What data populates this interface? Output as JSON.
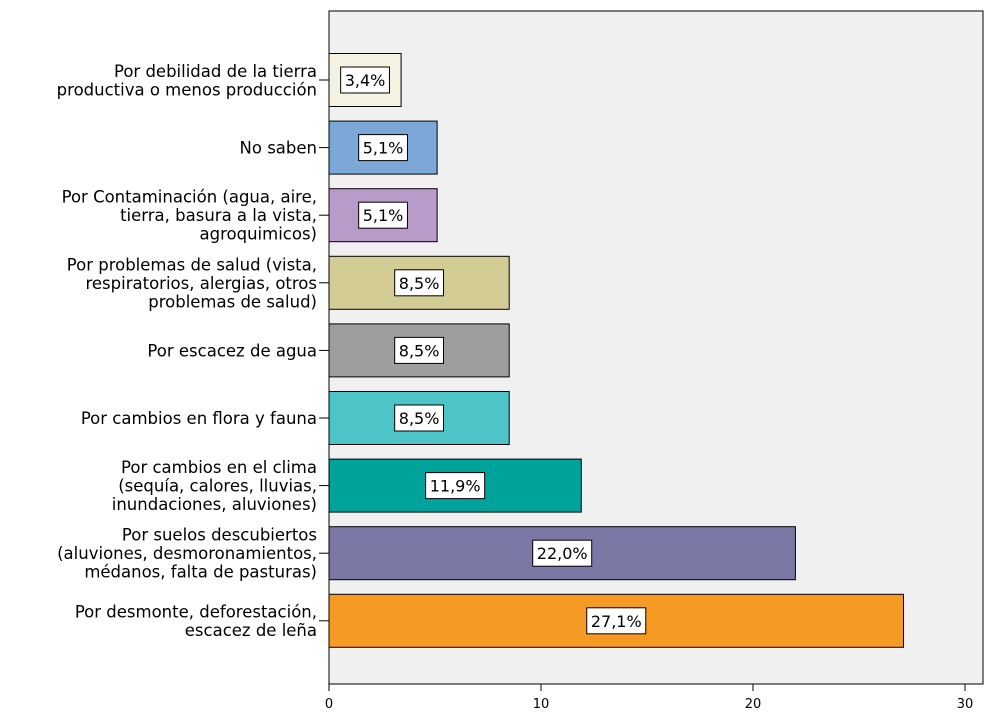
{
  "chart_data": {
    "type": "bar",
    "orientation": "horizontal",
    "categories": [
      [
        "Por debilidad de la tierra",
        "productiva o menos producción"
      ],
      [
        "No saben"
      ],
      [
        "Por Contaminación (agua, aire,",
        "tierra, basura a la vista,",
        "agroquimicos)"
      ],
      [
        "Por problemas de salud (vista,",
        "respiratorios, alergias, otros",
        "problemas de salud)"
      ],
      [
        "Por escacez de agua"
      ],
      [
        "Por cambios en flora y fauna"
      ],
      [
        "Por cambios en el clima",
        "(sequía, calores, lluvias,",
        "inundaciones, aluviones)"
      ],
      [
        "Por suelos descubiertos",
        "(aluviones, desmoronamientos,",
        "médanos, falta de pasturas)"
      ],
      [
        "Por desmonte, deforestación,",
        "escacez de leña"
      ]
    ],
    "values": [
      3.4,
      5.1,
      5.1,
      8.5,
      8.5,
      8.5,
      11.9,
      22.0,
      27.1
    ],
    "value_labels": [
      "3,4%",
      "5,1%",
      "5,1%",
      "8,5%",
      "8,5%",
      "8,5%",
      "11,9%",
      "22,0%",
      "27,1%"
    ],
    "bar_colors": [
      "#f5f2e1",
      "#7ba8d6",
      "#b89bc8",
      "#d3cc94",
      "#9e9e9e",
      "#4dc4c8",
      "#00a39c",
      "#7b78a6",
      "#f59a23"
    ],
    "xlim": [
      0,
      30
    ],
    "xticks": [
      "0",
      "10",
      "20",
      "30"
    ],
    "title": "",
    "xlabel": "",
    "ylabel": "",
    "plot_background": "#f0f0f0",
    "grid": false,
    "legend": "none"
  }
}
